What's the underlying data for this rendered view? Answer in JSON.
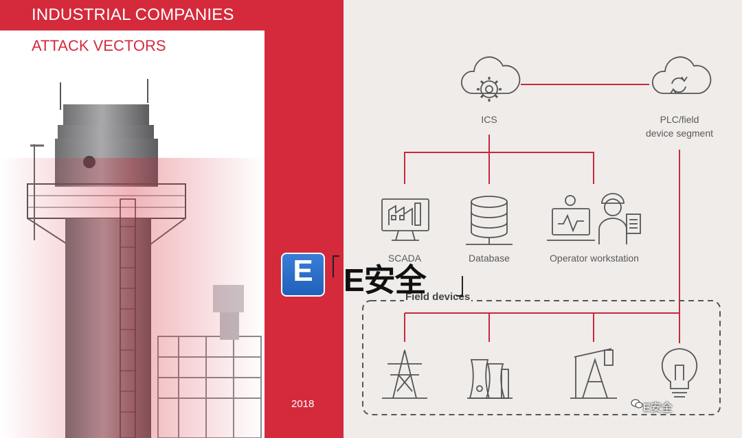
{
  "header": {
    "title": "INDUSTRIAL COMPANIES",
    "subtitle": "ATTACK VECTORS"
  },
  "footer": {
    "year": "2018"
  },
  "colors": {
    "accent": "#d42a3b",
    "line": "#c8283a",
    "icon": "#555555",
    "background": "#efecea"
  },
  "diagram": {
    "nodes": {
      "ics": {
        "label": "ICS",
        "icon": "cloud-gear-icon"
      },
      "plc": {
        "label_line1": "PLC/field",
        "label_line2": "device segment",
        "icon": "cloud-sync-icon"
      },
      "scada": {
        "label": "SCADA",
        "icon": "scada-monitor-icon"
      },
      "database": {
        "label": "Database",
        "icon": "database-icon"
      },
      "operator": {
        "label": "Operator workstation",
        "icon": "operator-workstation-icon"
      },
      "field_group": {
        "label": "Field devices"
      },
      "field_items": [
        "power-tower-icon",
        "power-plant-icon",
        "oil-pump-icon",
        "light-bulb-icon"
      ]
    }
  },
  "watermark": {
    "logo_letter": "E",
    "text": "E安全",
    "small_text": "E安全"
  }
}
